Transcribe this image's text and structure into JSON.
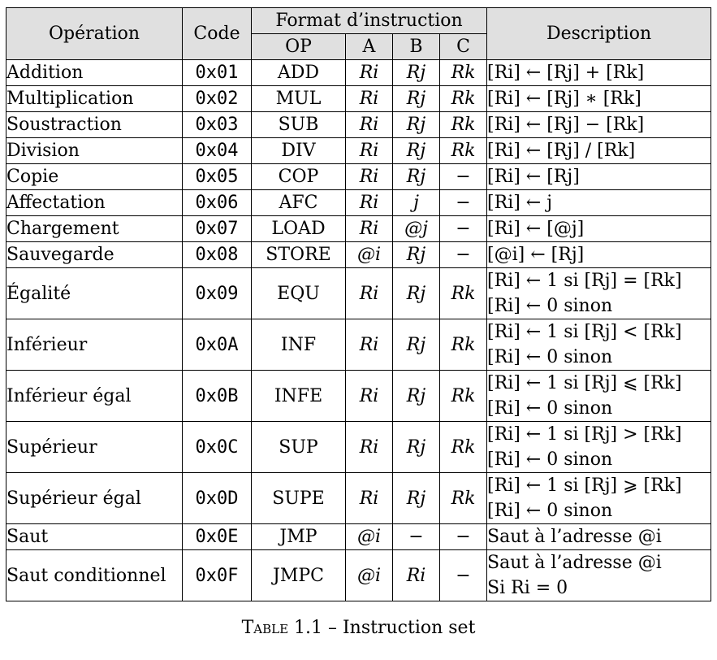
{
  "header": {
    "operation": "Opération",
    "code": "Code",
    "format": "Format d’instruction",
    "op": "OP",
    "a": "A",
    "b": "B",
    "c": "C",
    "description": "Description"
  },
  "rows": [
    {
      "op": "Addition",
      "code": "0x01",
      "mn": "ADD",
      "a": "Ri",
      "b": "Rj",
      "c": "Rk",
      "desc": [
        "[Ri] ← [Rj] + [Rk]"
      ]
    },
    {
      "op": "Multiplication",
      "code": "0x02",
      "mn": "MUL",
      "a": "Ri",
      "b": "Rj",
      "c": "Rk",
      "desc": [
        "[Ri] ← [Rj] ∗ [Rk]"
      ]
    },
    {
      "op": "Soustraction",
      "code": "0x03",
      "mn": "SUB",
      "a": "Ri",
      "b": "Rj",
      "c": "Rk",
      "desc": [
        "[Ri] ← [Rj] − [Rk]"
      ]
    },
    {
      "op": "Division",
      "code": "0x04",
      "mn": "DIV",
      "a": "Ri",
      "b": "Rj",
      "c": "Rk",
      "desc": [
        "[Ri] ← [Rj] / [Rk]"
      ]
    },
    {
      "op": "Copie",
      "code": "0x05",
      "mn": "COP",
      "a": "Ri",
      "b": "Rj",
      "c": "−",
      "desc": [
        "[Ri] ← [Rj]"
      ]
    },
    {
      "op": "Affectation",
      "code": "0x06",
      "mn": "AFC",
      "a": "Ri",
      "b": "j",
      "c": "−",
      "desc": [
        "[Ri] ← j"
      ]
    },
    {
      "op": "Chargement",
      "code": "0x07",
      "mn": "LOAD",
      "a": "Ri",
      "b": "@j",
      "c": "−",
      "desc": [
        "[Ri] ← [@j]"
      ]
    },
    {
      "op": "Sauvegarde",
      "code": "0x08",
      "mn": "STORE",
      "a": "@i",
      "b": "Rj",
      "c": "−",
      "desc": [
        "[@i] ← [Rj]"
      ]
    },
    {
      "op": "Égalité",
      "code": "0x09",
      "mn": "EQU",
      "a": "Ri",
      "b": "Rj",
      "c": "Rk",
      "desc": [
        "[Ri] ← 1 si [Rj] = [Rk]",
        "[Ri] ← 0 sinon"
      ]
    },
    {
      "op": "Inférieur",
      "code": "0x0A",
      "mn": "INF",
      "a": "Ri",
      "b": "Rj",
      "c": "Rk",
      "desc": [
        "[Ri] ← 1 si [Rj] < [Rk]",
        "[Ri] ← 0 sinon"
      ]
    },
    {
      "op": "Inférieur égal",
      "code": "0x0B",
      "mn": "INFE",
      "a": "Ri",
      "b": "Rj",
      "c": "Rk",
      "desc": [
        "[Ri] ← 1 si [Rj] ⩽ [Rk]",
        "[Ri] ← 0 sinon"
      ]
    },
    {
      "op": "Supérieur",
      "code": "0x0C",
      "mn": "SUP",
      "a": "Ri",
      "b": "Rj",
      "c": "Rk",
      "desc": [
        "[Ri] ← 1 si [Rj] > [Rk]",
        "[Ri] ← 0 sinon"
      ]
    },
    {
      "op": "Supérieur égal",
      "code": "0x0D",
      "mn": "SUPE",
      "a": "Ri",
      "b": "Rj",
      "c": "Rk",
      "desc": [
        "[Ri] ← 1 si [Rj] ⩾ [Rk]",
        "[Ri] ← 0 sinon"
      ]
    },
    {
      "op": "Saut",
      "code": "0x0E",
      "mn": "JMP",
      "a": "@i",
      "b": "−",
      "c": "−",
      "desc": [
        "Saut à l’adresse @i"
      ]
    },
    {
      "op": "Saut conditionnel",
      "code": "0x0F",
      "mn": "JMPC",
      "a": "@i",
      "b": "Ri",
      "c": "−",
      "desc": [
        "Saut à l’adresse @i",
        "Si Ri = 0"
      ]
    }
  ],
  "caption": {
    "label": "Table 1.1",
    "text": " – Instruction set"
  }
}
